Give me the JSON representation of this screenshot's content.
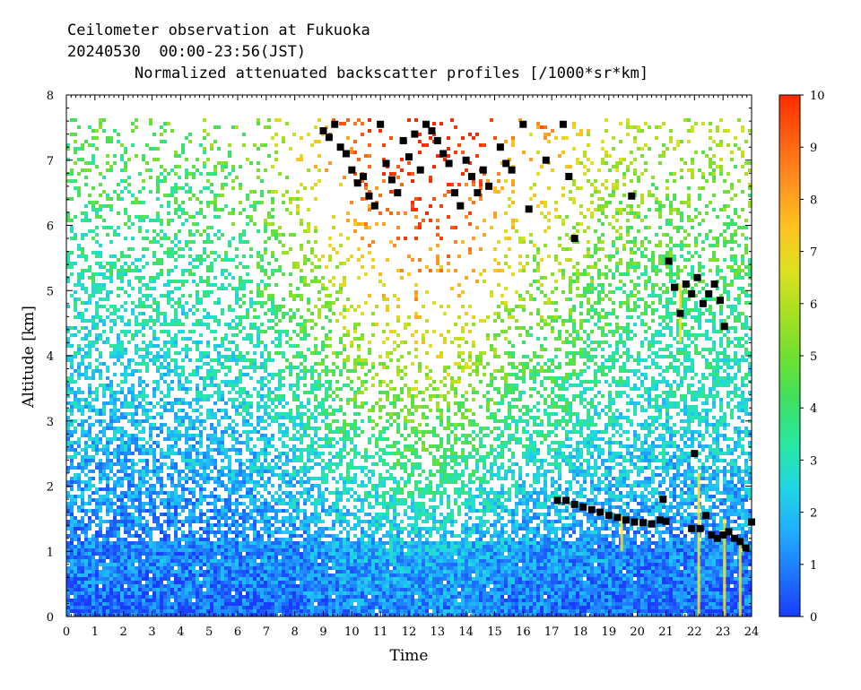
{
  "title_lines": [
    "Ceilometer observation at Fukuoka",
    "20240530  00:00-23:56(JST)",
    "Normalized attenuated backscatter profiles [/1000*sr*km]"
  ],
  "chart_data": {
    "type": "heatmap",
    "title": "Ceilometer observation at Fukuoka",
    "subtitle": "20240530  00:00-23:56(JST)",
    "colorbar_label": "Normalized attenuated backscatter profiles [/1000*sr*km]",
    "xlabel": "Time",
    "ylabel": "Altitude [km]",
    "xlim": [
      0,
      24
    ],
    "ylim": [
      0,
      8
    ],
    "x_ticks": [
      "0",
      "1",
      "2",
      "3",
      "4",
      "5",
      "6",
      "7",
      "8",
      "9",
      "10",
      "11",
      "12",
      "13",
      "14",
      "15",
      "16",
      "17",
      "18",
      "19",
      "20",
      "21",
      "22",
      "23",
      "24"
    ],
    "y_ticks": [
      "0",
      "1",
      "2",
      "3",
      "4",
      "5",
      "6",
      "7",
      "8"
    ],
    "colorbar": {
      "range": [
        0,
        10
      ],
      "ticks": [
        "0",
        "1",
        "2",
        "3",
        "4",
        "5",
        "6",
        "7",
        "8",
        "9",
        "10"
      ],
      "colors": [
        "#1a3cff",
        "#1e78ff",
        "#20b0ff",
        "#20d8e0",
        "#28e8a0",
        "#40e060",
        "#70e030",
        "#a8e020",
        "#e0e020",
        "#ffc020",
        "#ff9020",
        "#ff6010",
        "#ff2a00"
      ]
    },
    "data_top_altitude_km": 7.67,
    "cloud_base_marker_color": "#000000",
    "cloud_base_points": [
      [
        9.0,
        7.45
      ],
      [
        9.2,
        7.35
      ],
      [
        9.4,
        7.55
      ],
      [
        9.6,
        7.2
      ],
      [
        9.8,
        7.1
      ],
      [
        10.0,
        6.85
      ],
      [
        10.2,
        6.65
      ],
      [
        10.4,
        6.75
      ],
      [
        10.6,
        6.45
      ],
      [
        10.8,
        6.3
      ],
      [
        11.0,
        7.55
      ],
      [
        11.2,
        6.95
      ],
      [
        11.4,
        6.7
      ],
      [
        11.6,
        6.5
      ],
      [
        11.8,
        7.3
      ],
      [
        12.0,
        7.05
      ],
      [
        12.2,
        7.4
      ],
      [
        12.4,
        6.85
      ],
      [
        12.6,
        7.55
      ],
      [
        12.8,
        7.45
      ],
      [
        13.0,
        7.3
      ],
      [
        13.2,
        7.1
      ],
      [
        13.4,
        6.95
      ],
      [
        13.6,
        6.5
      ],
      [
        13.8,
        6.3
      ],
      [
        14.0,
        7.0
      ],
      [
        14.2,
        6.75
      ],
      [
        14.4,
        6.5
      ],
      [
        14.6,
        6.85
      ],
      [
        14.8,
        6.6
      ],
      [
        15.2,
        7.2
      ],
      [
        15.4,
        6.95
      ],
      [
        15.6,
        6.85
      ],
      [
        16.0,
        7.55
      ],
      [
        16.2,
        6.25
      ],
      [
        16.8,
        7.0
      ],
      [
        17.4,
        7.55
      ],
      [
        17.6,
        6.75
      ],
      [
        17.8,
        5.8
      ],
      [
        19.8,
        6.45
      ],
      [
        21.1,
        5.45
      ],
      [
        21.3,
        5.05
      ],
      [
        21.5,
        4.65
      ],
      [
        21.7,
        5.1
      ],
      [
        21.9,
        4.95
      ],
      [
        22.1,
        5.2
      ],
      [
        22.3,
        4.8
      ],
      [
        22.5,
        4.95
      ],
      [
        22.7,
        5.1
      ],
      [
        22.9,
        4.85
      ],
      [
        23.05,
        4.45
      ],
      [
        17.2,
        1.78
      ],
      [
        17.5,
        1.78
      ],
      [
        17.8,
        1.72
      ],
      [
        18.1,
        1.68
      ],
      [
        18.4,
        1.64
      ],
      [
        18.7,
        1.6
      ],
      [
        19.0,
        1.55
      ],
      [
        19.3,
        1.52
      ],
      [
        19.6,
        1.48
      ],
      [
        19.9,
        1.45
      ],
      [
        20.2,
        1.44
      ],
      [
        20.5,
        1.42
      ],
      [
        20.8,
        1.48
      ],
      [
        21.0,
        1.46
      ],
      [
        20.9,
        1.8
      ],
      [
        21.9,
        1.35
      ],
      [
        22.0,
        2.5
      ],
      [
        22.2,
        1.35
      ],
      [
        22.4,
        1.55
      ],
      [
        22.6,
        1.25
      ],
      [
        22.8,
        1.2
      ],
      [
        23.0,
        1.25
      ],
      [
        23.2,
        1.3
      ],
      [
        23.4,
        1.2
      ],
      [
        23.6,
        1.15
      ],
      [
        23.8,
        1.05
      ],
      [
        24.0,
        1.45
      ]
    ]
  }
}
